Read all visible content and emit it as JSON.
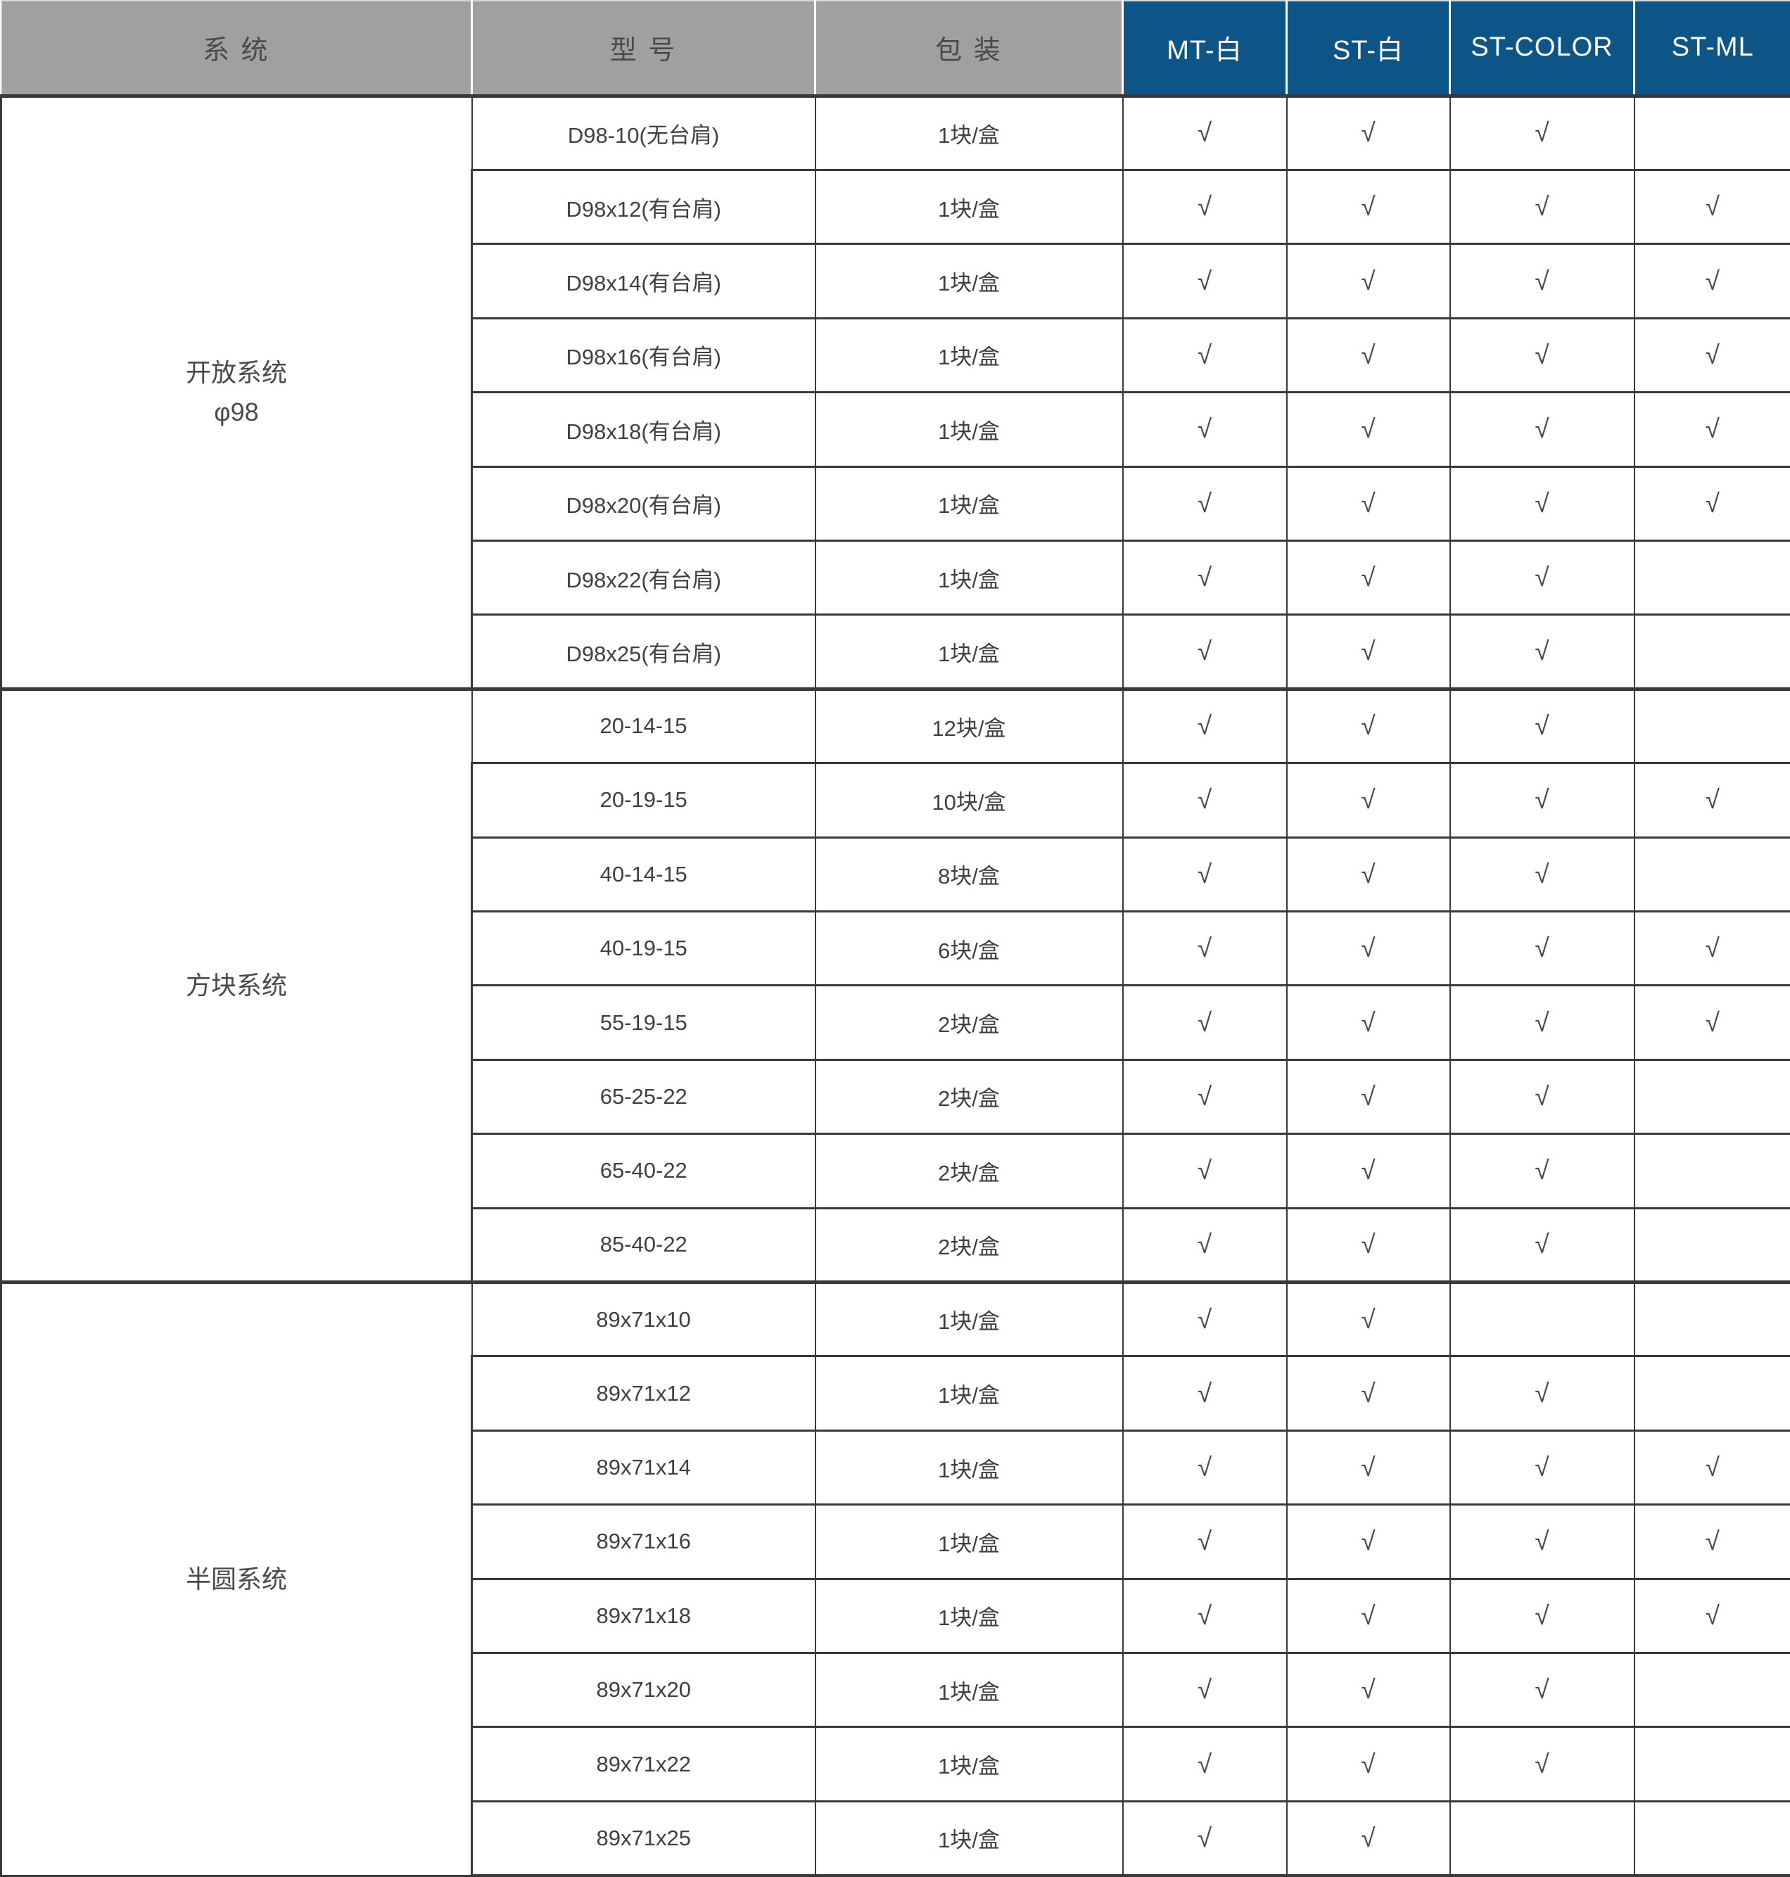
{
  "table": {
    "check_glyph": "√",
    "colors": {
      "header_gray_bg": "#a0a0a0",
      "header_blue_bg": "#0e5587",
      "header_gray_text": "#4a4a4a",
      "header_blue_text": "#ffffff",
      "body_text": "#404040",
      "border": "#3a3838"
    },
    "columns": [
      {
        "label": "系 统"
      },
      {
        "label": "型 号"
      },
      {
        "label": "包 装"
      },
      {
        "label": "MT-白"
      },
      {
        "label": "ST-白"
      },
      {
        "label": "ST-COLOR"
      },
      {
        "label": "ST-ML"
      }
    ],
    "sections": [
      {
        "system": "开放系统",
        "system_line2": "φ98",
        "rows": [
          {
            "model": "D98-10(无台肩)",
            "pack": "1块/盒",
            "checks": [
              1,
              1,
              1,
              0
            ]
          },
          {
            "model": "D98x12(有台肩)",
            "pack": "1块/盒",
            "checks": [
              1,
              1,
              1,
              1
            ]
          },
          {
            "model": "D98x14(有台肩)",
            "pack": "1块/盒",
            "checks": [
              1,
              1,
              1,
              1
            ]
          },
          {
            "model": "D98x16(有台肩)",
            "pack": "1块/盒",
            "checks": [
              1,
              1,
              1,
              1
            ]
          },
          {
            "model": "D98x18(有台肩)",
            "pack": "1块/盒",
            "checks": [
              1,
              1,
              1,
              1
            ]
          },
          {
            "model": "D98x20(有台肩)",
            "pack": "1块/盒",
            "checks": [
              1,
              1,
              1,
              1
            ]
          },
          {
            "model": "D98x22(有台肩)",
            "pack": "1块/盒",
            "checks": [
              1,
              1,
              1,
              0
            ]
          },
          {
            "model": "D98x25(有台肩)",
            "pack": "1块/盒",
            "checks": [
              1,
              1,
              1,
              0
            ]
          }
        ]
      },
      {
        "system": "方块系统",
        "system_line2": "",
        "rows": [
          {
            "model": "20-14-15",
            "pack": "12块/盒",
            "checks": [
              1,
              1,
              1,
              0
            ]
          },
          {
            "model": "20-19-15",
            "pack": "10块/盒",
            "checks": [
              1,
              1,
              1,
              1
            ]
          },
          {
            "model": "40-14-15",
            "pack": "8块/盒",
            "checks": [
              1,
              1,
              1,
              0
            ]
          },
          {
            "model": "40-19-15",
            "pack": "6块/盒",
            "checks": [
              1,
              1,
              1,
              1
            ]
          },
          {
            "model": "55-19-15",
            "pack": "2块/盒",
            "checks": [
              1,
              1,
              1,
              1
            ]
          },
          {
            "model": "65-25-22",
            "pack": "2块/盒",
            "checks": [
              1,
              1,
              1,
              0
            ]
          },
          {
            "model": "65-40-22",
            "pack": "2块/盒",
            "checks": [
              1,
              1,
              1,
              0
            ]
          },
          {
            "model": "85-40-22",
            "pack": "2块/盒",
            "checks": [
              1,
              1,
              1,
              0
            ]
          }
        ]
      },
      {
        "system": "半圆系统",
        "system_line2": "",
        "rows": [
          {
            "model": "89x71x10",
            "pack": "1块/盒",
            "checks": [
              1,
              1,
              0,
              0
            ]
          },
          {
            "model": "89x71x12",
            "pack": "1块/盒",
            "checks": [
              1,
              1,
              1,
              0
            ]
          },
          {
            "model": "89x71x14",
            "pack": "1块/盒",
            "checks": [
              1,
              1,
              1,
              1
            ]
          },
          {
            "model": "89x71x16",
            "pack": "1块/盒",
            "checks": [
              1,
              1,
              1,
              1
            ]
          },
          {
            "model": "89x71x18",
            "pack": "1块/盒",
            "checks": [
              1,
              1,
              1,
              1
            ]
          },
          {
            "model": "89x71x20",
            "pack": "1块/盒",
            "checks": [
              1,
              1,
              1,
              0
            ]
          },
          {
            "model": "89x71x22",
            "pack": "1块/盒",
            "checks": [
              1,
              1,
              1,
              0
            ]
          },
          {
            "model": "89x71x25",
            "pack": "1块/盒",
            "checks": [
              1,
              1,
              0,
              0
            ]
          }
        ]
      }
    ]
  }
}
